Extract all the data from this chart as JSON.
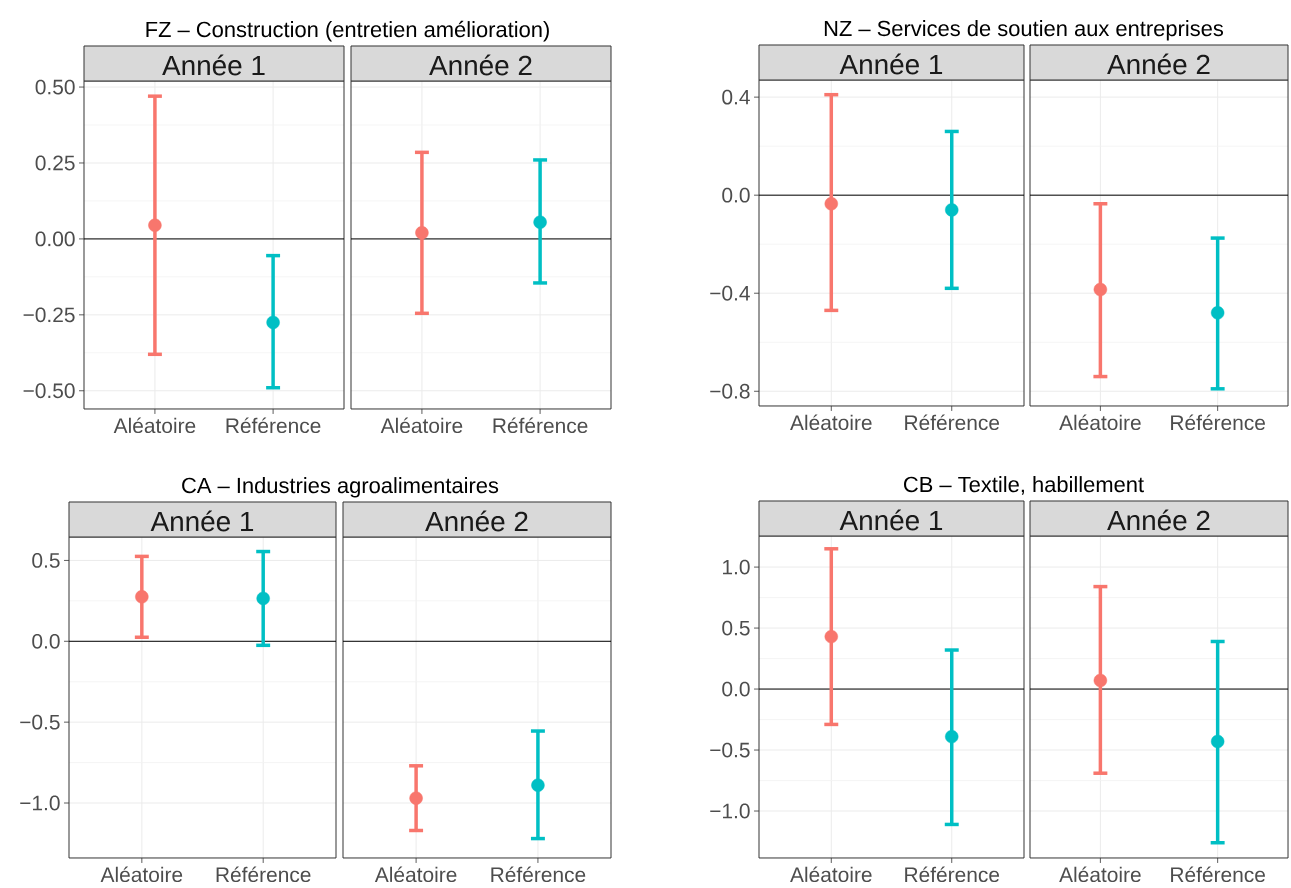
{
  "chart_data": [
    {
      "type": "scatter",
      "title": "FZ – Construction (entretien amélioration)",
      "subtitle": "Année 1",
      "categories": [
        "Aléatoire",
        "Référence"
      ],
      "values": [
        0.045,
        -0.275
      ],
      "errors": [
        [
          -0.38,
          0.47
        ],
        [
          -0.49,
          -0.055
        ]
      ],
      "colors": [
        "#f8766d",
        "#00bfc4"
      ],
      "ylim": [
        -0.56,
        0.52
      ],
      "yticks": [
        {
          "value": -0.5,
          "label": "−0.50"
        },
        {
          "value": -0.25,
          "label": "−0.25"
        },
        {
          "value": 0,
          "label": "0.00"
        },
        {
          "value": 0.25,
          "label": "0.25"
        },
        {
          "value": 0.5,
          "label": "0.50"
        }
      ],
      "grid": true,
      "marker": "circle",
      "ref_lines": [
        {
          "axis": "y",
          "value": 0
        }
      ]
    },
    {
      "type": "scatter",
      "subtitle": "Année 2",
      "categories": [
        "Aléatoire",
        "Référence"
      ],
      "values": [
        0.02,
        0.055
      ],
      "errors": [
        [
          -0.245,
          0.285
        ],
        [
          -0.145,
          0.26
        ]
      ],
      "colors": [
        "#f8766d",
        "#00bfc4"
      ],
      "ylim": [
        -0.56,
        0.52
      ],
      "yticks": [
        {
          "value": -0.5,
          "label": null
        },
        {
          "value": -0.25,
          "label": null
        },
        {
          "value": 0,
          "label": null
        },
        {
          "value": 0.25,
          "label": null
        },
        {
          "value": 0.5,
          "label": null
        }
      ],
      "tick_labels": "x",
      "grid": true,
      "marker": "circle",
      "ref_lines": [
        {
          "axis": "y",
          "value": 0
        }
      ]
    },
    {
      "type": "scatter",
      "title": "NZ – Services de soutien aux entreprises",
      "subtitle": "Année 1",
      "categories": [
        "Aléatoire",
        "Référence"
      ],
      "values": [
        -0.035,
        -0.06
      ],
      "errors": [
        [
          -0.47,
          0.41
        ],
        [
          -0.38,
          0.26
        ]
      ],
      "colors": [
        "#f8766d",
        "#00bfc4"
      ],
      "ylim": [
        -0.86,
        0.47
      ],
      "yticks": [
        {
          "value": -0.8,
          "label": "−0.8"
        },
        {
          "value": -0.4,
          "label": "−0.4"
        },
        {
          "value": 0,
          "label": "0.0"
        },
        {
          "value": 0.4,
          "label": "0.4"
        }
      ],
      "grid": true,
      "marker": "circle",
      "ref_lines": [
        {
          "axis": "y",
          "value": 0
        }
      ]
    },
    {
      "type": "scatter",
      "subtitle": "Année 2",
      "categories": [
        "Aléatoire",
        "Référence"
      ],
      "values": [
        -0.385,
        -0.48
      ],
      "errors": [
        [
          -0.74,
          -0.035
        ],
        [
          -0.79,
          -0.175
        ]
      ],
      "colors": [
        "#f8766d",
        "#00bfc4"
      ],
      "ylim": [
        -0.86,
        0.47
      ],
      "yticks": [
        {
          "value": -0.8,
          "label": null
        },
        {
          "value": -0.4,
          "label": null
        },
        {
          "value": 0,
          "label": null
        },
        {
          "value": 0.4,
          "label": null
        }
      ],
      "tick_labels": "x",
      "grid": true,
      "marker": "circle",
      "ref_lines": [
        {
          "axis": "y",
          "value": 0
        }
      ]
    },
    {
      "type": "scatter",
      "title": "CA – Industries agroalimentaires",
      "subtitle": "Année 1",
      "categories": [
        "Aléatoire",
        "Référence"
      ],
      "values": [
        0.275,
        0.265
      ],
      "errors": [
        [
          0.025,
          0.525
        ],
        [
          -0.025,
          0.555
        ]
      ],
      "colors": [
        "#f8766d",
        "#00bfc4"
      ],
      "ylim": [
        -1.34,
        0.645
      ],
      "yticks": [
        {
          "value": -1.0,
          "label": "−1.0"
        },
        {
          "value": -0.5,
          "label": "−0.5"
        },
        {
          "value": 0,
          "label": "0.0"
        },
        {
          "value": 0.5,
          "label": "0.5"
        }
      ],
      "grid": true,
      "marker": "circle",
      "ref_lines": [
        {
          "axis": "y",
          "value": 0
        }
      ]
    },
    {
      "type": "scatter",
      "subtitle": "Année 2",
      "categories": [
        "Aléatoire",
        "Référence"
      ],
      "values": [
        -0.97,
        -0.89
      ],
      "errors": [
        [
          -1.17,
          -0.77
        ],
        [
          -1.22,
          -0.555
        ]
      ],
      "colors": [
        "#f8766d",
        "#00bfc4"
      ],
      "ylim": [
        -1.34,
        0.645
      ],
      "yticks": [
        {
          "value": -1.0,
          "label": null
        },
        {
          "value": -0.5,
          "label": null
        },
        {
          "value": 0,
          "label": null
        },
        {
          "value": 0.5,
          "label": null
        }
      ],
      "tick_labels": "x",
      "grid": true,
      "marker": "circle",
      "ref_lines": [
        {
          "axis": "y",
          "value": 0
        }
      ]
    },
    {
      "type": "scatter",
      "title": "CB – Textile, habillement",
      "subtitle": "Année 1",
      "categories": [
        "Aléatoire",
        "Référence"
      ],
      "values": [
        0.43,
        -0.39
      ],
      "errors": [
        [
          -0.29,
          1.15
        ],
        [
          -1.11,
          0.32
        ]
      ],
      "colors": [
        "#f8766d",
        "#00bfc4"
      ],
      "ylim": [
        -1.385,
        1.255
      ],
      "yticks": [
        {
          "value": -1.0,
          "label": "−1.0"
        },
        {
          "value": -0.5,
          "label": "−0.5"
        },
        {
          "value": 0,
          "label": "0.0"
        },
        {
          "value": 0.5,
          "label": "0.5"
        },
        {
          "value": 1.0,
          "label": "1.0"
        }
      ],
      "grid": true,
      "marker": "circle",
      "ref_lines": [
        {
          "axis": "y",
          "value": 0
        }
      ]
    },
    {
      "type": "scatter",
      "subtitle": "Année 2",
      "categories": [
        "Aléatoire",
        "Référence"
      ],
      "values": [
        0.07,
        -0.43
      ],
      "errors": [
        [
          -0.69,
          0.84
        ],
        [
          -1.26,
          0.39
        ]
      ],
      "colors": [
        "#f8766d",
        "#00bfc4"
      ],
      "ylim": [
        -1.385,
        1.255
      ],
      "yticks": [
        {
          "value": -1.0,
          "label": null
        },
        {
          "value": -0.5,
          "label": null
        },
        {
          "value": 0,
          "label": null
        },
        {
          "value": 0.5,
          "label": null
        },
        {
          "value": 1.0,
          "label": null
        }
      ],
      "tick_labels": "x",
      "grid": true,
      "marker": "circle",
      "ref_lines": [
        {
          "axis": "y",
          "value": 0
        }
      ]
    }
  ]
}
